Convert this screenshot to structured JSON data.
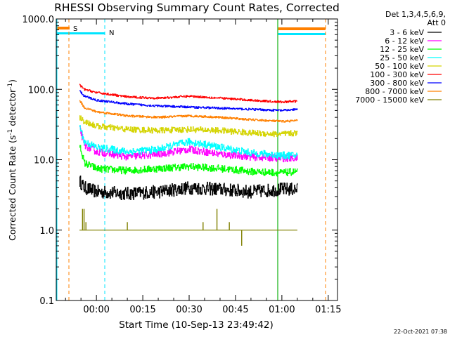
{
  "chart_data": {
    "type": "line",
    "title": "RHESSI Observing Summary Count Rates, Corrected",
    "xlabel": "Start Time (10-Sep-13 23:49:42)",
    "ylabel": "Corrected Count Rate (s⁻¹ detector⁻¹)",
    "ylabel_parts": {
      "main": "Corrected Count Rate (s",
      "sup1": "-1",
      "mid": " detector",
      "sup2": "-1",
      "end": ")"
    },
    "yscale": "log",
    "ylim": [
      0.1,
      1000
    ],
    "xlim_minutes": [
      -13,
      78
    ],
    "x_ticks": [
      {
        "label": "00:00",
        "t": 0
      },
      {
        "label": "00:15",
        "t": 15
      },
      {
        "label": "00:30",
        "t": 30
      },
      {
        "label": "00:45",
        "t": 45
      },
      {
        "label": "01:00",
        "t": 60
      },
      {
        "label": "01:15",
        "t": 75
      }
    ],
    "y_ticks": [
      {
        "label": "0.1",
        "v": 0.1
      },
      {
        "label": "1.0",
        "v": 1
      },
      {
        "label": "10.0",
        "v": 10
      },
      {
        "label": "100.0",
        "v": 100
      },
      {
        "label": "1000.0",
        "v": 1000
      }
    ],
    "legend_header": [
      "Det 1,3,4,5,6,9,",
      "Att 0"
    ],
    "legend_position": "right",
    "flags": [
      {
        "label": "S",
        "color": "#ff8000"
      },
      {
        "label": "N",
        "color": "#00e5ff"
      }
    ],
    "series": [
      {
        "name": "3 - 6 keV",
        "color": "#000000",
        "t": [
          -5.5,
          -4,
          0,
          10,
          20,
          30,
          40,
          50,
          60,
          65
        ],
        "y": [
          5,
          4,
          3.5,
          3.3,
          3.5,
          4,
          3.8,
          3.5,
          3.8,
          3.8
        ]
      },
      {
        "name": "6 - 12 keV",
        "color": "#ff00ff",
        "t": [
          -5.5,
          -4,
          0,
          10,
          20,
          30,
          40,
          50,
          60,
          65
        ],
        "y": [
          28,
          16,
          13,
          11,
          12,
          14,
          12,
          11,
          10.5,
          10.5
        ]
      },
      {
        "name": "12 - 25 keV",
        "color": "#00ff00",
        "t": [
          -5.5,
          -4,
          0,
          10,
          20,
          30,
          40,
          50,
          60,
          65
        ],
        "y": [
          16,
          9,
          7.5,
          7,
          7.5,
          8,
          7.5,
          6.8,
          6.5,
          6.8
        ]
      },
      {
        "name": "25 - 50 keV",
        "color": "#00ffff",
        "t": [
          -5.5,
          -4,
          0,
          10,
          20,
          30,
          40,
          50,
          60,
          65
        ],
        "y": [
          30,
          18,
          15,
          13,
          14,
          18,
          15,
          12.5,
          11.5,
          11.5
        ]
      },
      {
        "name": "50 - 100 keV",
        "color": "#d4d400",
        "t": [
          -5.5,
          -4,
          0,
          10,
          20,
          30,
          40,
          50,
          60,
          65
        ],
        "y": [
          40,
          35,
          30,
          27,
          26,
          27,
          26,
          24,
          23,
          24
        ]
      },
      {
        "name": "100 - 300 keV",
        "color": "#ff0000",
        "t": [
          -5.5,
          -4,
          0,
          10,
          20,
          30,
          40,
          50,
          60,
          65
        ],
        "y": [
          115,
          100,
          90,
          78,
          75,
          80,
          75,
          70,
          66,
          68
        ]
      },
      {
        "name": "300 - 800 keV",
        "color": "#0000ff",
        "t": [
          -5.5,
          -4,
          0,
          10,
          20,
          30,
          40,
          50,
          60,
          65
        ],
        "y": [
          95,
          80,
          70,
          62,
          58,
          56,
          54,
          52,
          50,
          52
        ]
      },
      {
        "name": "800 - 7000 keV",
        "color": "#ff8000",
        "t": [
          -5.5,
          -4,
          0,
          10,
          20,
          30,
          40,
          50,
          60,
          65
        ],
        "y": [
          70,
          55,
          48,
          42,
          40,
          42,
          40,
          37,
          35,
          36
        ]
      },
      {
        "name": "7000 - 15000 keV",
        "color": "#808000",
        "t": [
          -5.5,
          -4,
          0,
          10,
          20,
          30,
          40,
          50,
          60,
          65
        ],
        "y": [
          1.0,
          1.0,
          1.0,
          1.0,
          1.0,
          1.0,
          1.0,
          1.0,
          1.0,
          1.0
        ]
      }
    ]
  },
  "timestamp": "22-Oct-2021 07:38"
}
